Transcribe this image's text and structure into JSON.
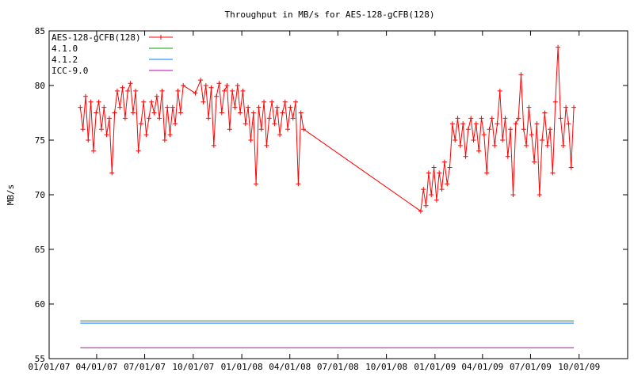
{
  "chart_data": {
    "type": "line",
    "title": "Throughput in MB/s for AES-128-gCFB(128)",
    "xlabel": "",
    "ylabel": "MB/s",
    "xlim": [
      "2007-01-01",
      "2010-01-01"
    ],
    "ylim": [
      55,
      85
    ],
    "yticks": [
      55,
      60,
      65,
      70,
      75,
      80,
      85
    ],
    "xticks": [
      "01/01/07",
      "04/01/07",
      "07/01/07",
      "10/01/07",
      "01/01/08",
      "04/01/08",
      "07/01/08",
      "10/01/08",
      "01/01/09",
      "04/01/09",
      "07/01/09",
      "10/01/09"
    ],
    "xtick_dates": [
      "2007-01-01",
      "2007-04-01",
      "2007-07-01",
      "2007-10-01",
      "2008-01-01",
      "2008-04-01",
      "2008-07-01",
      "2008-10-01",
      "2009-01-01",
      "2009-04-01",
      "2009-07-01",
      "2009-10-01"
    ],
    "grid": false,
    "legend_position": "top-left",
    "series": [
      {
        "name": "AES-128-gCFB(128)",
        "color": "#ff0000",
        "marker": "plus",
        "points": [
          [
            "2007-03-01",
            78.0
          ],
          [
            "2007-03-06",
            76.0
          ],
          [
            "2007-03-11",
            79.0
          ],
          [
            "2007-03-16",
            75.0
          ],
          [
            "2007-03-21",
            78.5
          ],
          [
            "2007-03-26",
            74.0
          ],
          [
            "2007-03-31",
            77.5
          ],
          [
            "2007-04-05",
            78.5
          ],
          [
            "2007-04-10",
            76.0
          ],
          [
            "2007-04-15",
            78.0
          ],
          [
            "2007-04-20",
            75.5
          ],
          [
            "2007-04-25",
            77.0
          ],
          [
            "2007-04-30",
            72.0
          ],
          [
            "2007-05-05",
            77.5
          ],
          [
            "2007-05-10",
            79.5
          ],
          [
            "2007-05-15",
            78.0
          ],
          [
            "2007-05-20",
            79.8
          ],
          [
            "2007-05-25",
            77.0
          ],
          [
            "2007-05-30",
            79.5
          ],
          [
            "2007-06-04",
            80.2
          ],
          [
            "2007-06-09",
            77.5
          ],
          [
            "2007-06-14",
            79.5
          ],
          [
            "2007-06-19",
            74.0
          ],
          [
            "2007-06-24",
            76.5
          ],
          [
            "2007-06-29",
            78.5
          ],
          [
            "2007-07-04",
            75.5
          ],
          [
            "2007-07-09",
            77.0
          ],
          [
            "2007-07-14",
            78.5
          ],
          [
            "2007-07-19",
            77.5
          ],
          [
            "2007-07-24",
            79.0
          ],
          [
            "2007-07-29",
            77.0
          ],
          [
            "2007-08-03",
            79.5
          ],
          [
            "2007-08-08",
            75.0
          ],
          [
            "2007-08-13",
            78.0
          ],
          [
            "2007-08-18",
            75.5
          ],
          [
            "2007-08-23",
            78.0
          ],
          [
            "2007-08-28",
            76.5
          ],
          [
            "2007-09-02",
            79.5
          ],
          [
            "2007-09-07",
            77.5
          ],
          [
            "2007-09-12",
            80.0
          ],
          [
            "2007-10-05",
            79.3
          ],
          [
            "2007-10-15",
            80.5
          ],
          [
            "2007-10-20",
            78.5
          ],
          [
            "2007-10-25",
            80.0
          ],
          [
            "2007-10-30",
            77.0
          ],
          [
            "2007-11-04",
            79.8
          ],
          [
            "2007-11-09",
            74.5
          ],
          [
            "2007-11-14",
            79.0
          ],
          [
            "2007-11-19",
            80.2
          ],
          [
            "2007-11-24",
            77.5
          ],
          [
            "2007-11-29",
            79.5
          ],
          [
            "2007-12-04",
            80.0
          ],
          [
            "2007-12-09",
            76.0
          ],
          [
            "2007-12-14",
            79.5
          ],
          [
            "2007-12-19",
            78.0
          ],
          [
            "2007-12-24",
            80.0
          ],
          [
            "2007-12-29",
            77.5
          ],
          [
            "2008-01-03",
            79.5
          ],
          [
            "2008-01-08",
            76.5
          ],
          [
            "2008-01-13",
            78.0
          ],
          [
            "2008-01-18",
            75.0
          ],
          [
            "2008-01-23",
            77.5
          ],
          [
            "2008-01-28",
            71.0
          ],
          [
            "2008-02-02",
            78.0
          ],
          [
            "2008-02-07",
            76.0
          ],
          [
            "2008-02-12",
            78.5
          ],
          [
            "2008-02-17",
            74.5
          ],
          [
            "2008-02-22",
            77.0
          ],
          [
            "2008-02-27",
            78.5
          ],
          [
            "2008-03-03",
            76.5
          ],
          [
            "2008-03-08",
            78.0
          ],
          [
            "2008-03-13",
            75.5
          ],
          [
            "2008-03-18",
            77.5
          ],
          [
            "2008-03-23",
            78.5
          ],
          [
            "2008-03-28",
            76.0
          ],
          [
            "2008-04-02",
            78.0
          ],
          [
            "2008-04-07",
            77.0
          ],
          [
            "2008-04-12",
            78.5
          ],
          [
            "2008-04-17",
            71.0
          ],
          [
            "2008-04-22",
            77.5
          ],
          [
            "2008-04-27",
            76.0
          ],
          [
            "2008-12-05",
            68.5
          ],
          [
            "2008-12-10",
            70.5
          ],
          [
            "2008-12-15",
            69.0
          ],
          [
            "2008-12-20",
            72.0
          ],
          [
            "2008-12-25",
            70.0
          ],
          [
            "2008-12-30",
            72.5
          ],
          [
            "2009-01-04",
            69.5
          ],
          [
            "2009-01-09",
            72.0
          ],
          [
            "2009-01-14",
            70.5
          ],
          [
            "2009-01-19",
            73.0
          ],
          [
            "2009-01-24",
            71.0
          ],
          [
            "2009-01-29",
            72.5
          ],
          [
            "2009-02-03",
            76.5
          ],
          [
            "2009-02-08",
            75.0
          ],
          [
            "2009-02-13",
            77.0
          ],
          [
            "2009-02-18",
            74.5
          ],
          [
            "2009-02-23",
            76.5
          ],
          [
            "2009-02-28",
            73.5
          ],
          [
            "2009-03-05",
            76.0
          ],
          [
            "2009-03-10",
            77.0
          ],
          [
            "2009-03-15",
            75.0
          ],
          [
            "2009-03-20",
            76.5
          ],
          [
            "2009-03-25",
            74.0
          ],
          [
            "2009-03-30",
            77.0
          ],
          [
            "2009-04-04",
            75.5
          ],
          [
            "2009-04-09",
            72.0
          ],
          [
            "2009-04-14",
            76.0
          ],
          [
            "2009-04-19",
            77.0
          ],
          [
            "2009-04-24",
            74.5
          ],
          [
            "2009-04-29",
            76.5
          ],
          [
            "2009-05-04",
            79.5
          ],
          [
            "2009-05-09",
            75.0
          ],
          [
            "2009-05-14",
            77.0
          ],
          [
            "2009-05-19",
            73.5
          ],
          [
            "2009-05-24",
            76.0
          ],
          [
            "2009-05-29",
            70.0
          ],
          [
            "2009-06-03",
            76.5
          ],
          [
            "2009-06-08",
            77.0
          ],
          [
            "2009-06-13",
            81.0
          ],
          [
            "2009-06-18",
            76.0
          ],
          [
            "2009-06-23",
            74.5
          ],
          [
            "2009-06-28",
            78.0
          ],
          [
            "2009-07-03",
            75.5
          ],
          [
            "2009-07-08",
            73.0
          ],
          [
            "2009-07-13",
            76.5
          ],
          [
            "2009-07-18",
            70.0
          ],
          [
            "2009-07-23",
            75.0
          ],
          [
            "2009-07-28",
            77.5
          ],
          [
            "2009-08-02",
            74.5
          ],
          [
            "2009-08-07",
            76.0
          ],
          [
            "2009-08-12",
            72.0
          ],
          [
            "2009-08-17",
            78.5
          ],
          [
            "2009-08-22",
            83.5
          ],
          [
            "2009-08-27",
            77.0
          ],
          [
            "2009-09-01",
            74.5
          ],
          [
            "2009-09-06",
            78.0
          ],
          [
            "2009-09-11",
            76.5
          ],
          [
            "2009-09-16",
            72.5
          ],
          [
            "2009-09-21",
            78.0
          ]
        ]
      },
      {
        "name": "4.1.0",
        "color": "#00a000",
        "points": [
          [
            "2007-03-01",
            58.45
          ],
          [
            "2009-09-21",
            58.45
          ]
        ]
      },
      {
        "name": "4.1.2",
        "color": "#0080ff",
        "points": [
          [
            "2007-03-01",
            58.25
          ],
          [
            "2009-09-21",
            58.25
          ]
        ]
      },
      {
        "name": "ICC-9.0",
        "color": "#c000c0",
        "points": [
          [
            "2007-03-01",
            56.0
          ],
          [
            "2009-09-21",
            56.0
          ]
        ]
      }
    ]
  }
}
